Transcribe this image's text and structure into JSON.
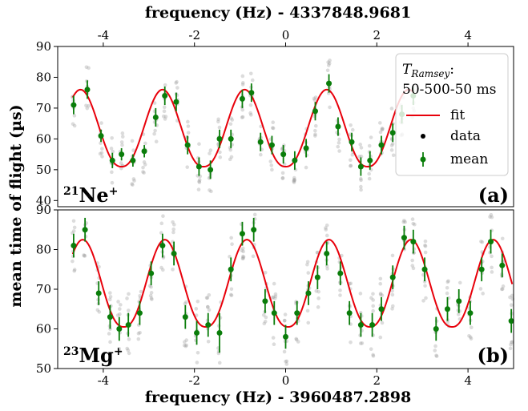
{
  "chart_data": [
    {
      "panel": "(a)",
      "species": "21Ne+",
      "species_mass": "21",
      "species_sym": "Ne",
      "species_charge": "+",
      "type": "scatter",
      "x_top_label": "frequency (Hz) - 4337848.9681",
      "ylabel": "mean time of flight (µs)",
      "xlim": [
        -5,
        5
      ],
      "ylim": [
        38,
        90
      ],
      "xticks": [
        -4,
        -2,
        0,
        2,
        4
      ],
      "yticks": [
        40,
        50,
        60,
        70,
        80,
        90
      ],
      "fit": {
        "offset": 63.5,
        "amplitude": 12.5,
        "period": 1.8,
        "peak_x": -4.5,
        "sharpness": 1.2,
        "color": "#e8000b"
      },
      "mean": {
        "x": [
          -4.65,
          -4.35,
          -4.05,
          -3.8,
          -3.6,
          -3.35,
          -3.1,
          -2.85,
          -2.65,
          -2.4,
          -2.15,
          -1.9,
          -1.65,
          -1.45,
          -1.2,
          -0.95,
          -0.75,
          -0.55,
          -0.3,
          -0.05,
          0.2,
          0.45,
          0.65,
          0.95,
          1.15,
          1.45,
          1.65,
          1.85,
          2.1,
          2.35,
          2.55,
          2.8
        ],
        "y": [
          71,
          76,
          61,
          53,
          55,
          53,
          56,
          67,
          74,
          72,
          58,
          51,
          50,
          60,
          60,
          73,
          75,
          59,
          58,
          55,
          53,
          57,
          69,
          78,
          64,
          59,
          51,
          53,
          58,
          62,
          68,
          74
        ],
        "err": [
          3,
          3,
          2,
          2.5,
          2,
          2,
          2,
          3,
          3,
          3,
          3,
          3,
          3,
          3,
          3,
          3,
          3,
          3,
          3,
          3,
          3,
          3,
          3,
          3,
          3,
          3,
          3,
          3,
          3,
          3,
          3,
          3
        ],
        "color": "#0a7d0a"
      },
      "legend": {
        "title_main": "T",
        "title_sub": "Ramsey",
        "title_colon": ":",
        "subtitle": "50-500-50 ms",
        "entries": [
          "fit",
          "data",
          "mean"
        ],
        "placement": "top-right"
      }
    },
    {
      "panel": "(b)",
      "species": "23Mg+",
      "species_mass": "23",
      "species_sym": "Mg",
      "species_charge": "+",
      "type": "scatter",
      "xlabel": "frequency (Hz) - 3960487.2898",
      "xlim": [
        -5,
        5
      ],
      "ylim": [
        50,
        90
      ],
      "xticks": [
        -4,
        -2,
        0,
        2,
        4
      ],
      "yticks": [
        50,
        60,
        70,
        80,
        90
      ],
      "fit": {
        "offset": 71.5,
        "amplitude": 11,
        "period": 1.8,
        "peak_x": -4.45,
        "sharpness": 1.2,
        "color": "#e8000b"
      },
      "mean": {
        "x": [
          -4.65,
          -4.4,
          -4.1,
          -3.85,
          -3.65,
          -3.45,
          -3.2,
          -2.95,
          -2.7,
          -2.45,
          -2.2,
          -1.95,
          -1.7,
          -1.45,
          -1.2,
          -0.95,
          -0.7,
          -0.45,
          -0.25,
          0,
          0.25,
          0.5,
          0.7,
          0.9,
          1.2,
          1.4,
          1.65,
          1.9,
          2.1,
          2.35,
          2.6,
          2.8,
          3.05,
          3.3,
          3.55,
          3.8,
          4.05,
          4.3,
          4.5,
          4.75,
          4.95
        ],
        "y": [
          81,
          85,
          69,
          63,
          60,
          61,
          64,
          74,
          81,
          79,
          63,
          59,
          61,
          59,
          75,
          84,
          85,
          67,
          64,
          58,
          64,
          69,
          73,
          79,
          74,
          64,
          61,
          61,
          65,
          73,
          83,
          82,
          75,
          60,
          65,
          67,
          64,
          75,
          82,
          76,
          62
        ],
        "err": [
          3,
          3,
          3,
          3,
          3,
          3,
          3,
          3,
          3,
          3,
          3,
          3,
          3,
          5,
          3,
          3,
          3,
          3,
          3,
          3,
          3,
          3,
          3,
          3,
          3,
          3,
          3,
          3,
          3,
          3,
          3,
          3,
          3,
          3,
          3,
          3,
          3,
          3,
          3,
          3,
          3
        ],
        "color": "#0a7d0a"
      }
    }
  ]
}
